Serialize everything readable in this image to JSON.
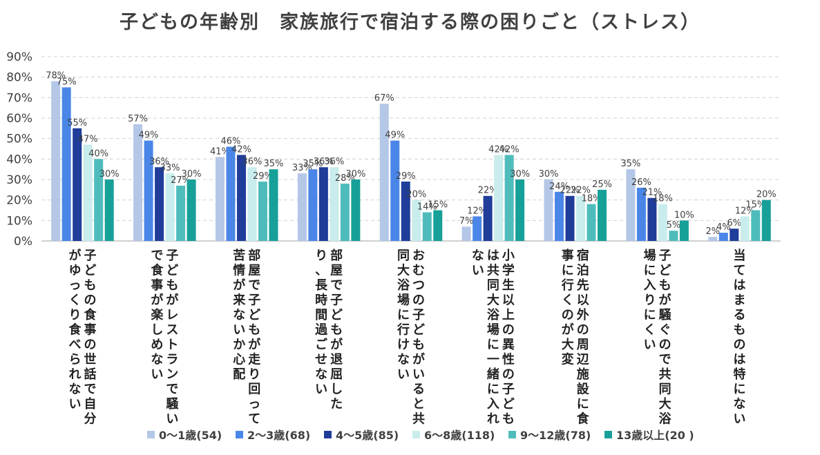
{
  "chart_data": {
    "type": "bar",
    "title": "子どもの年齢別　家族旅行で宿泊する際の困りごと（ストレス）",
    "ylim": [
      0,
      90
    ],
    "yticks": [
      "0%",
      "10%",
      "20%",
      "30%",
      "40%",
      "50%",
      "60%",
      "70%",
      "80%",
      "90%"
    ],
    "grid": true,
    "legend_position": "bottom",
    "categories": [
      [
        "子どもの食事の世話で自分",
        "がゆっくり食べられない"
      ],
      [
        "子どもがレストランで騒い",
        "で食事が楽しめない"
      ],
      [
        "部屋で子どもが走り回って",
        "苦情が来ないか心配"
      ],
      [
        "部屋で子どもが退屈した",
        "り、長時間過ごせない"
      ],
      [
        "おむつの子どもがいると共",
        "同大浴場に行けない"
      ],
      [
        "小学生以上の異性の子ども",
        "は共同大浴場に一緒に入れ",
        "ない"
      ],
      [
        "宿泊先以外の周辺施設に食",
        "事に行くのが大変"
      ],
      [
        "子どもが騒ぐので共同大浴",
        "場に入りにくい"
      ],
      [
        "当てはまるものは特にない"
      ]
    ],
    "series": [
      {
        "name": "0～1歳(54)",
        "color": "#b4c7e7",
        "values": [
          78,
          57,
          41,
          33,
          67,
          7,
          30,
          35,
          2
        ],
        "labels": [
          "78%",
          "57%",
          "41%",
          "33%",
          "67%",
          "7%",
          "30%",
          "35%",
          "2%"
        ]
      },
      {
        "name": "2～3歳(68)",
        "color": "#4a86e8",
        "values": [
          75,
          49,
          46,
          35,
          49,
          12,
          24,
          26,
          4
        ],
        "labels": [
          "75%",
          "49%",
          "46%",
          "35%",
          "49%",
          "12%",
          "24%",
          "26%",
          "4%"
        ]
      },
      {
        "name": "4～5歳(85)",
        "color": "#1f3d99",
        "values": [
          55,
          36,
          42,
          36,
          29,
          22,
          22,
          21,
          6
        ],
        "labels": [
          "55%",
          "36%",
          "42%",
          "36%",
          "29%",
          "22%",
          "22%",
          "21%",
          "6%"
        ]
      },
      {
        "name": "6～8歳(118)",
        "color": "#c9ecec",
        "values": [
          47,
          33,
          36,
          36,
          20,
          42,
          22,
          18,
          12
        ],
        "labels": [
          "47%",
          "33%",
          "36%",
          "36%",
          "20%",
          "42%",
          "22%",
          "18%",
          "12%"
        ]
      },
      {
        "name": "9～12歳(78)",
        "color": "#4fbcbc",
        "values": [
          40,
          27,
          29,
          28,
          14,
          42,
          18,
          5,
          15
        ],
        "labels": [
          "40%",
          "27%",
          "29%",
          "28%",
          "14%",
          "42%",
          "18%",
          "5%",
          "15%"
        ]
      },
      {
        "name": "13歳以上(20 )",
        "color": "#17a098",
        "values": [
          30,
          30,
          35,
          30,
          15,
          30,
          25,
          10,
          20
        ],
        "labels": [
          "30%",
          "30%",
          "35%",
          "30%",
          "15%",
          "30%",
          "25%",
          "10%",
          "20%"
        ]
      }
    ]
  }
}
